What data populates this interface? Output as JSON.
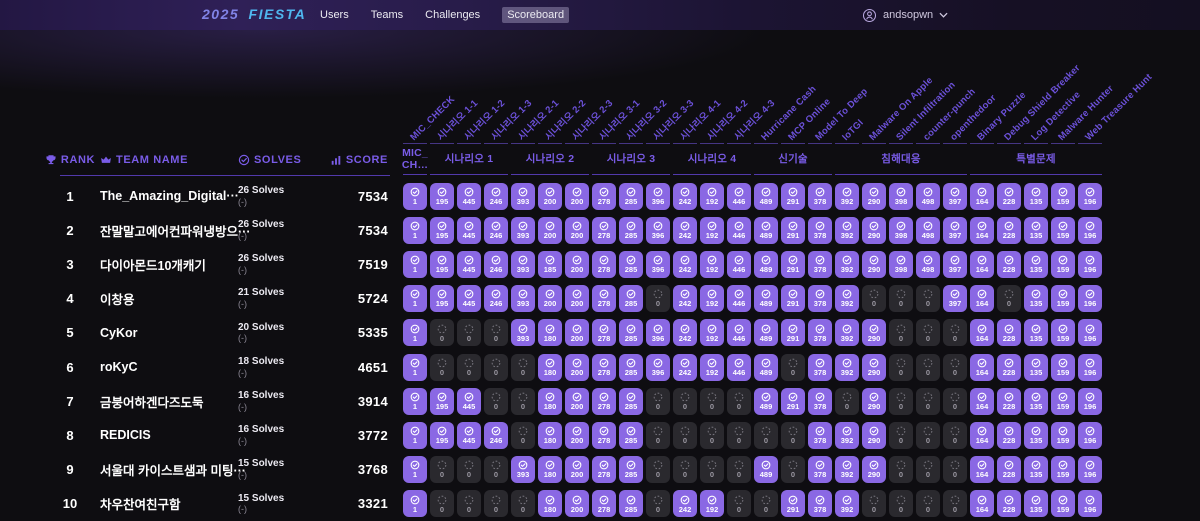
{
  "header": {
    "logo": {
      "year": "2025",
      "name": "FIESTA"
    },
    "nav": [
      {
        "label": "Users",
        "active": false
      },
      {
        "label": "Teams",
        "active": false
      },
      {
        "label": "Challenges",
        "active": false
      },
      {
        "label": "Scoreboard",
        "active": true
      }
    ],
    "user": {
      "name": "andsopwn"
    }
  },
  "scoreboard": {
    "table_headers": {
      "rank": "RANK",
      "team": "TEAM NAME",
      "solves": "SOLVES",
      "score": "SCORE"
    },
    "challenges": [
      "MIC_CHECK",
      "시나리오 1-1",
      "시나리오 1-2",
      "시나리오 1-3",
      "시나리오 2-1",
      "시나리오 2-2",
      "시나리오 2-3",
      "시나리오 3-1",
      "시나리오 3-2",
      "시나리오 3-3",
      "시나리오 4-1",
      "시나리오 4-2",
      "시나리오 4-3",
      "Hurricane Cash",
      "MCP Online",
      "Model To Deep",
      "IoTGI",
      "Malware On Apple",
      "Silent Infiltration",
      "counter-punch",
      "openthedoor",
      "Binary Puzzle",
      "Debug Shield Breaker",
      "Log Detective",
      "Malware Hunter",
      "Web Treasure Hunt"
    ],
    "groups": [
      {
        "label": "MIC_\nCH…",
        "span": 1
      },
      {
        "label": "시나리오 1",
        "span": 3
      },
      {
        "label": "시나리오 2",
        "span": 3
      },
      {
        "label": "시나리오 3",
        "span": 3
      },
      {
        "label": "시나리오 4",
        "span": 3
      },
      {
        "label": "신기술",
        "span": 3
      },
      {
        "label": "침해대응",
        "span": 5
      },
      {
        "label": "특별문제",
        "span": 5
      }
    ],
    "rows": [
      {
        "rank": "1",
        "team": "The_Amazing_Digital···",
        "solves": "26 Solves",
        "solves_sub": "(-)",
        "score": "7534",
        "points": [
          1,
          195,
          445,
          246,
          393,
          200,
          200,
          278,
          285,
          396,
          242,
          192,
          446,
          489,
          291,
          378,
          392,
          290,
          398,
          498,
          397,
          164,
          228,
          135,
          159,
          196
        ]
      },
      {
        "rank": "2",
        "team": "잔말말고에어컨파워냉방으···",
        "solves": "26 Solves",
        "solves_sub": "(-)",
        "score": "7534",
        "points": [
          1,
          195,
          445,
          246,
          393,
          200,
          200,
          278,
          285,
          396,
          242,
          192,
          446,
          489,
          291,
          378,
          392,
          290,
          398,
          498,
          397,
          164,
          228,
          135,
          159,
          196
        ]
      },
      {
        "rank": "3",
        "team": "다이아몬드10개캐기",
        "solves": "26 Solves",
        "solves_sub": "(-)",
        "score": "7519",
        "points": [
          1,
          195,
          445,
          246,
          393,
          185,
          200,
          278,
          285,
          396,
          242,
          192,
          446,
          489,
          291,
          378,
          392,
          290,
          398,
          498,
          397,
          164,
          228,
          135,
          159,
          196
        ]
      },
      {
        "rank": "4",
        "team": "이창용",
        "solves": "21 Solves",
        "solves_sub": "(-)",
        "score": "5724",
        "points": [
          1,
          195,
          445,
          246,
          393,
          200,
          200,
          278,
          285,
          0,
          242,
          192,
          446,
          489,
          291,
          378,
          392,
          0,
          0,
          0,
          397,
          164,
          0,
          135,
          159,
          196
        ]
      },
      {
        "rank": "5",
        "team": "CyKor",
        "solves": "20 Solves",
        "solves_sub": "(-)",
        "score": "5335",
        "points": [
          1,
          0,
          0,
          0,
          393,
          180,
          200,
          278,
          285,
          396,
          242,
          192,
          446,
          489,
          291,
          378,
          392,
          290,
          0,
          0,
          0,
          164,
          228,
          135,
          159,
          196
        ]
      },
      {
        "rank": "6",
        "team": "roKyC",
        "solves": "18 Solves",
        "solves_sub": "(-)",
        "score": "4651",
        "points": [
          1,
          0,
          0,
          0,
          0,
          180,
          200,
          278,
          285,
          396,
          242,
          192,
          446,
          489,
          0,
          378,
          392,
          290,
          0,
          0,
          0,
          164,
          228,
          135,
          159,
          196
        ]
      },
      {
        "rank": "7",
        "team": "금붕어하겐다즈도둑",
        "solves": "16 Solves",
        "solves_sub": "(-)",
        "score": "3914",
        "points": [
          1,
          195,
          445,
          0,
          0,
          180,
          200,
          278,
          285,
          0,
          0,
          0,
          0,
          489,
          291,
          378,
          0,
          290,
          0,
          0,
          0,
          164,
          228,
          135,
          159,
          196
        ]
      },
      {
        "rank": "8",
        "team": "REDICIS",
        "solves": "16 Solves",
        "solves_sub": "(-)",
        "score": "3772",
        "points": [
          1,
          195,
          445,
          246,
          0,
          180,
          200,
          278,
          285,
          0,
          0,
          0,
          0,
          0,
          0,
          378,
          392,
          290,
          0,
          0,
          0,
          164,
          228,
          135,
          159,
          196
        ]
      },
      {
        "rank": "9",
        "team": "서울대 카이스트샘과 미팅···",
        "solves": "15 Solves",
        "solves_sub": "(-)",
        "score": "3768",
        "points": [
          1,
          0,
          0,
          0,
          393,
          180,
          200,
          278,
          285,
          0,
          0,
          0,
          0,
          489,
          0,
          378,
          392,
          290,
          0,
          0,
          0,
          164,
          228,
          135,
          159,
          196
        ]
      },
      {
        "rank": "10",
        "team": "차우찬여친구함",
        "solves": "15 Solves",
        "solves_sub": "(-)",
        "score": "3321",
        "points": [
          1,
          0,
          0,
          0,
          0,
          180,
          200,
          278,
          285,
          0,
          242,
          192,
          0,
          0,
          291,
          378,
          392,
          0,
          0,
          0,
          0,
          164,
          228,
          135,
          159,
          196
        ]
      }
    ]
  },
  "colors": {
    "accent": "#7a5ce8",
    "rotated_label": "#6c51d9",
    "line": "#5e42c8",
    "badge_solved": "#8a68e4",
    "badge_unsolved": "#2a292e",
    "logo_year": "#8183e6",
    "logo_name": "#4fb7f0"
  }
}
